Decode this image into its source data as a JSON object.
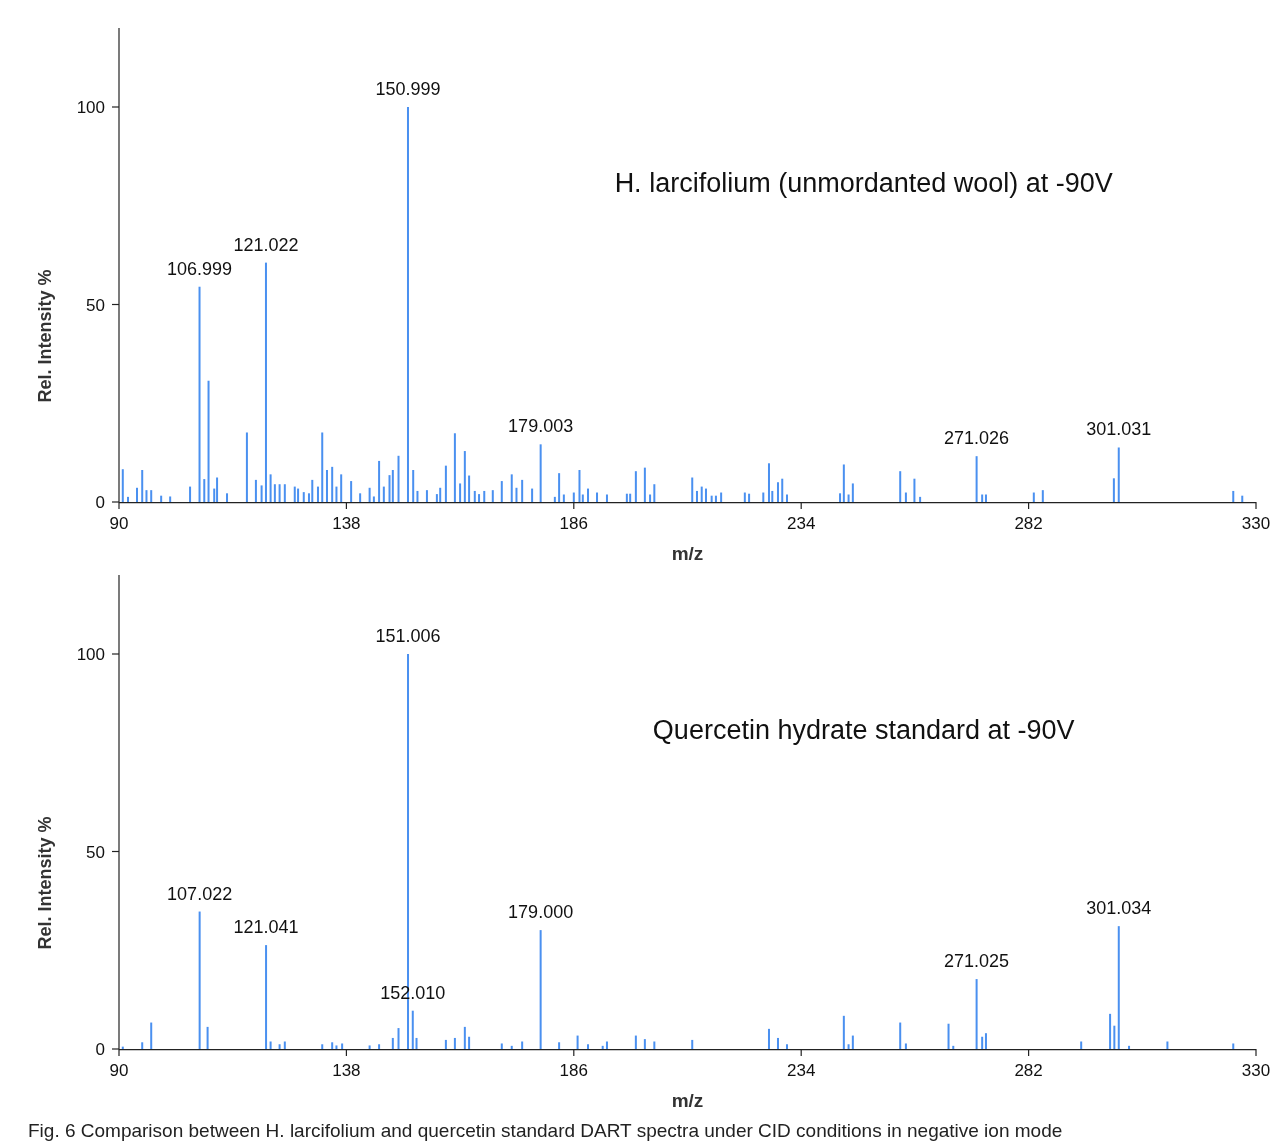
{
  "chart_data": [
    {
      "type": "bar",
      "title": "H. larcifolium (unmordanted wool) at -90V",
      "xlabel": "m/z",
      "ylabel": "Rel. Intensity %",
      "xlim": [
        90,
        330
      ],
      "xticks": [
        90,
        138,
        186,
        234,
        282,
        330
      ],
      "ylim": [
        0,
        120
      ],
      "yticks": [
        0,
        50,
        100
      ],
      "x": [
        90.8,
        91.9,
        93.8,
        94.9,
        95.8,
        96.8,
        98.9,
        100.8,
        105.0,
        106.999,
        108.0,
        108.9,
        110.1,
        110.7,
        112.8,
        117.0,
        118.9,
        120.1,
        121.022,
        122.0,
        122.9,
        123.9,
        125.0,
        127.1,
        127.8,
        129.0,
        130.1,
        130.8,
        132.0,
        132.9,
        133.9,
        135.0,
        135.9,
        136.9,
        139.0,
        140.9,
        142.9,
        143.8,
        144.9,
        145.9,
        147.1,
        147.8,
        149.0,
        150.999,
        152.1,
        153.0,
        155.0,
        157.1,
        157.8,
        159.0,
        160.9,
        162.0,
        163.0,
        163.9,
        165.1,
        166.0,
        167.1,
        168.9,
        170.8,
        172.9,
        173.9,
        175.1,
        177.2,
        179.003,
        182.0,
        182.9,
        183.9,
        186.0,
        187.2,
        187.9,
        189.0,
        190.9,
        193.0,
        197.2,
        197.9,
        199.1,
        201.0,
        202.1,
        203.0,
        211.0,
        212.0,
        213.0,
        213.9,
        215.1,
        216.0,
        217.1,
        222.1,
        223.0,
        226.0,
        227.2,
        227.9,
        229.1,
        230.0,
        231.0,
        242.2,
        243.0,
        244.0,
        244.9,
        254.9,
        256.1,
        257.9,
        259.1,
        271.026,
        272.2,
        273.0,
        283.1,
        285.0,
        300.0,
        301.031,
        325.2,
        327.1
      ],
      "series": [
        {
          "color": "#4a90f0",
          "values": [
            8.3,
            1.3,
            3.6,
            8.1,
            3.0,
            3.0,
            1.6,
            1.4,
            3.9,
            54.5,
            5.8,
            30.7,
            3.4,
            6.2,
            2.2,
            17.6,
            5.6,
            4.2,
            60.6,
            7.0,
            4.5,
            4.5,
            4.5,
            3.9,
            3.4,
            2.5,
            2.2,
            5.6,
            3.9,
            17.6,
            8.1,
            8.9,
            3.9,
            7.0,
            5.3,
            2.2,
            3.6,
            1.4,
            10.4,
            3.9,
            6.8,
            8.1,
            11.7,
            100,
            8.1,
            2.8,
            3.0,
            2.0,
            3.6,
            9.2,
            17.4,
            4.7,
            12.9,
            6.7,
            2.8,
            2.0,
            2.8,
            3.0,
            5.3,
            7.0,
            3.6,
            5.6,
            3.4,
            14.6,
            1.3,
            7.3,
            1.9,
            2.4,
            8.1,
            1.9,
            3.4,
            2.4,
            1.9,
            2.1,
            2.1,
            7.8,
            8.7,
            1.9,
            4.5,
            6.2,
            2.8,
            3.9,
            3.4,
            1.6,
            1.6,
            2.4,
            2.4,
            2.1,
            2.4,
            9.8,
            2.8,
            5.0,
            5.9,
            1.9,
            2.2,
            9.5,
            1.9,
            4.7,
            7.8,
            2.4,
            5.9,
            1.3,
            11.6,
            1.9,
            1.9,
            2.4,
            3.0,
            6.0,
            13.8,
            2.8,
            1.6
          ]
        }
      ],
      "annotations": [
        {
          "text": "106.999",
          "x": 106.999,
          "y": 54.5
        },
        {
          "text": "121.022",
          "x": 121.022,
          "y": 60.6
        },
        {
          "text": "150.999",
          "x": 150.999,
          "y": 100
        },
        {
          "text": "179.003",
          "x": 179.003,
          "y": 14.6
        },
        {
          "text": "271.026",
          "x": 271.026,
          "y": 11.6
        },
        {
          "text": "301.031",
          "x": 301.031,
          "y": 13.8
        }
      ]
    },
    {
      "type": "bar",
      "title": "Quercetin hydrate standard at -90V",
      "xlabel": "m/z",
      "ylabel": "Rel. Intensity %",
      "xlim": [
        90,
        330
      ],
      "xticks": [
        90,
        138,
        186,
        234,
        282,
        330
      ],
      "ylim": [
        0,
        120
      ],
      "yticks": [
        0,
        50,
        100
      ],
      "x": [
        90.8,
        94.9,
        96.8,
        107.022,
        108.7,
        121.041,
        122.0,
        123.9,
        125.0,
        132.9,
        135.0,
        135.9,
        137.1,
        142.9,
        144.9,
        147.8,
        149.0,
        151.006,
        152.01,
        152.8,
        159.0,
        160.9,
        163.0,
        163.9,
        170.8,
        172.9,
        175.1,
        179.0,
        182.9,
        186.8,
        189.0,
        192.1,
        193.0,
        199.1,
        201.0,
        203.0,
        211.0,
        227.2,
        229.1,
        231.0,
        243.0,
        244.0,
        244.9,
        254.9,
        256.1,
        265.1,
        266.1,
        271.025,
        272.2,
        273.0,
        293.1,
        299.2,
        300.1,
        301.034,
        303.2,
        311.3,
        325.2
      ],
      "series": [
        {
          "color": "#4a90f0",
          "values": [
            0.6,
            1.7,
            6.7,
            34.8,
            5.6,
            26.3,
            1.9,
            1.2,
            1.9,
            1.2,
            1.7,
            0.9,
            1.4,
            0.9,
            1.2,
            2.8,
            5.3,
            100,
            9.7,
            2.8,
            2.3,
            2.8,
            5.6,
            3.1,
            1.4,
            0.8,
            1.9,
            30.1,
            1.7,
            3.4,
            1.2,
            0.8,
            1.9,
            3.4,
            2.5,
            1.9,
            2.3,
            5.1,
            2.8,
            1.2,
            8.4,
            1.2,
            3.4,
            6.7,
            1.4,
            6.4,
            0.8,
            17.7,
            3.1,
            4.0,
            1.9,
            8.9,
            5.9,
            31.1,
            0.8,
            1.9,
            1.4
          ]
        }
      ],
      "annotations": [
        {
          "text": "107.022",
          "x": 107.022,
          "y": 34.8
        },
        {
          "text": "121.041",
          "x": 121.041,
          "y": 26.3
        },
        {
          "text": "151.006",
          "x": 151.006,
          "y": 100
        },
        {
          "text": "152.010",
          "x": 152.01,
          "y": 9.7
        },
        {
          "text": "179.000",
          "x": 179.0,
          "y": 30.1
        },
        {
          "text": "271.025",
          "x": 271.025,
          "y": 17.7
        },
        {
          "text": "301.034",
          "x": 301.034,
          "y": 31.1
        },
        "Fig. 6 Comparison between H. larcifolium and quercetin standard DART spectra under CID conditions in negative ion mode"
      ]
    }
  ]
}
